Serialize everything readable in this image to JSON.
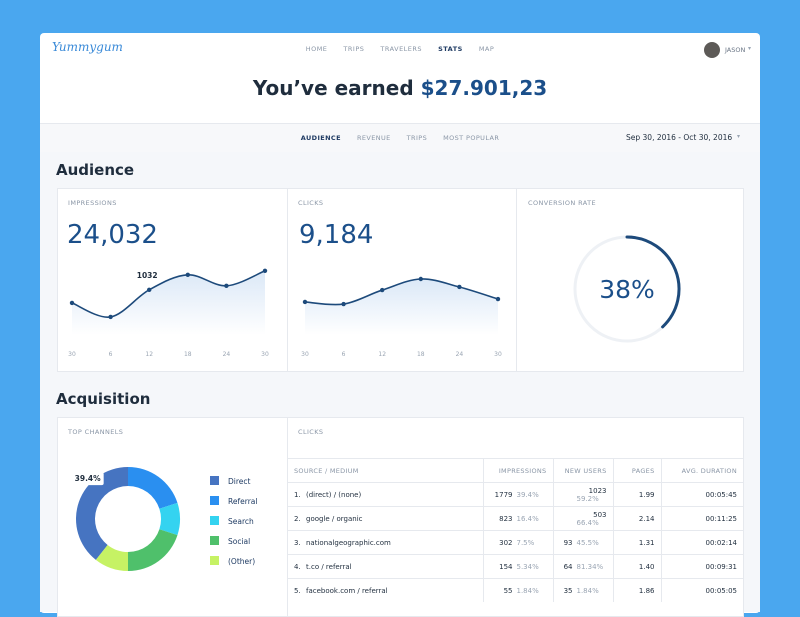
{
  "nav": {
    "logo": "Yummygum",
    "links": [
      "HOME",
      "TRIPS",
      "TRAVELERS",
      "STATS",
      "MAP"
    ],
    "active": 3,
    "user": "JASON"
  },
  "header": {
    "title": "You’ve earned",
    "amount": "$27.901,23"
  },
  "tabs": {
    "items": [
      "AUDIENCE",
      "REVENUE",
      "TRIPS",
      "MOST POPULAR"
    ],
    "active": 0,
    "date": "Sep 30, 2016 - Oct 30, 2016"
  },
  "audience": {
    "title": "Audience",
    "impressions": {
      "type": "line",
      "label": "IMPRESSIONS",
      "total": "24,032",
      "categories": [
        "30",
        "6",
        "12",
        "18",
        "24",
        "30"
      ],
      "values": [
        734,
        413,
        1032,
        1376,
        1124,
        1468
      ],
      "value_labels": [
        null,
        null,
        "1032",
        null,
        null,
        null
      ],
      "ylim": [
        0,
        1600
      ],
      "color": "#1d4a7b"
    },
    "clicks": {
      "type": "line",
      "label": "CLICKS",
      "total": "9,184",
      "categories": [
        "30",
        "6",
        "12",
        "18",
        "24",
        "30"
      ],
      "values": [
        236,
        221,
        321,
        400,
        343,
        257
      ],
      "ylim": [
        0,
        500
      ],
      "color": "#1d4a7b"
    },
    "conversion": {
      "type": "gauge",
      "label": "CONVERSION RATE",
      "value": 38,
      "value_label": "38%",
      "max": 100,
      "color": "#1d4a7b"
    }
  },
  "acquisition": {
    "title": "Acquisition",
    "channels": {
      "type": "pie",
      "label": "TOP CHANNELS",
      "categories": [
        "Direct",
        "Referral",
        "Search",
        "Social",
        "(Other)"
      ],
      "values": [
        39.4,
        20,
        10,
        20,
        10.6
      ],
      "value_labels": [
        "39.4%",
        null,
        null,
        null,
        null
      ],
      "colors": [
        "#4674c1",
        "#2a8ff0",
        "#34d3f0",
        "#4fc06b",
        "#c6f264"
      ]
    },
    "table": {
      "label": "CLICKS",
      "columns": [
        "SOURCE / MEDIUM",
        "IMPRESSIONS",
        "NEW USERS",
        "PAGES",
        "AVG. DURATION"
      ],
      "rows": [
        [
          "1.",
          "(direct) / (none)",
          "1779",
          "39.4%",
          "1023",
          "59.2%",
          "1.99",
          "00:05:45"
        ],
        [
          "2.",
          "google / organic",
          "823",
          "16.4%",
          "503",
          "66.4%",
          "2.14",
          "00:11:25"
        ],
        [
          "3.",
          "nationalgeographic.com",
          "302",
          "7.5%",
          "93",
          "45.5%",
          "1.31",
          "00:02:14"
        ],
        [
          "4.",
          "t.co / referral",
          "154",
          "5.34%",
          "64",
          "81.34%",
          "1.40",
          "00:09:31"
        ],
        [
          "5.",
          "facebook.com / referral",
          "55",
          "1.84%",
          "35",
          "1.84%",
          "1.86",
          "00:05:05"
        ]
      ]
    }
  }
}
